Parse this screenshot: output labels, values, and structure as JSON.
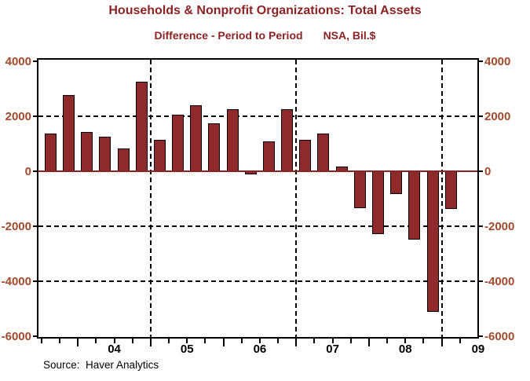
{
  "source_note": "Source:  Haver Analytics",
  "colors": {
    "title": "#8B2323",
    "axis_labels": "#A24A2C",
    "bar_fill": "#8E2A2C",
    "bar_border": "#000000",
    "zero_line": "#8B2323",
    "grid": "#000000",
    "year_labels": "#000000"
  },
  "chart_data": {
    "type": "bar",
    "title": "Households & Nonprofit Organizations: Total Assets",
    "subtitle": "Difference - Period to Period",
    "units": "NSA, Bil.$",
    "x": [
      "2003Q3",
      "2003Q4",
      "2004Q1",
      "2004Q2",
      "2004Q3",
      "2004Q4",
      "2005Q1",
      "2005Q2",
      "2005Q3",
      "2005Q4",
      "2006Q1",
      "2006Q2",
      "2006Q3",
      "2006Q4",
      "2007Q1",
      "2007Q2",
      "2007Q3",
      "2007Q4",
      "2008Q1",
      "2008Q2",
      "2008Q3",
      "2008Q4",
      "2009Q1"
    ],
    "values": [
      1370,
      2770,
      1440,
      1260,
      840,
      3270,
      1150,
      2060,
      2400,
      1740,
      2260,
      -110,
      1090,
      2260,
      1130,
      1370,
      180,
      -1340,
      -2280,
      -820,
      -2490,
      -5110,
      -1370
    ],
    "ylim": [
      -6000,
      4000
    ],
    "yticks": [
      4000,
      2000,
      0,
      -2000,
      -4000,
      -6000
    ],
    "hgrid_values": [
      2000,
      -2000,
      -4000
    ],
    "vgrid_years": [
      2005,
      2007,
      2009
    ],
    "x_year_labels": [
      "04",
      "05",
      "06",
      "07",
      "08",
      "09"
    ],
    "x_range_years": [
      2003.458,
      2009.49
    ],
    "grid": "dashed",
    "legend": "none"
  }
}
